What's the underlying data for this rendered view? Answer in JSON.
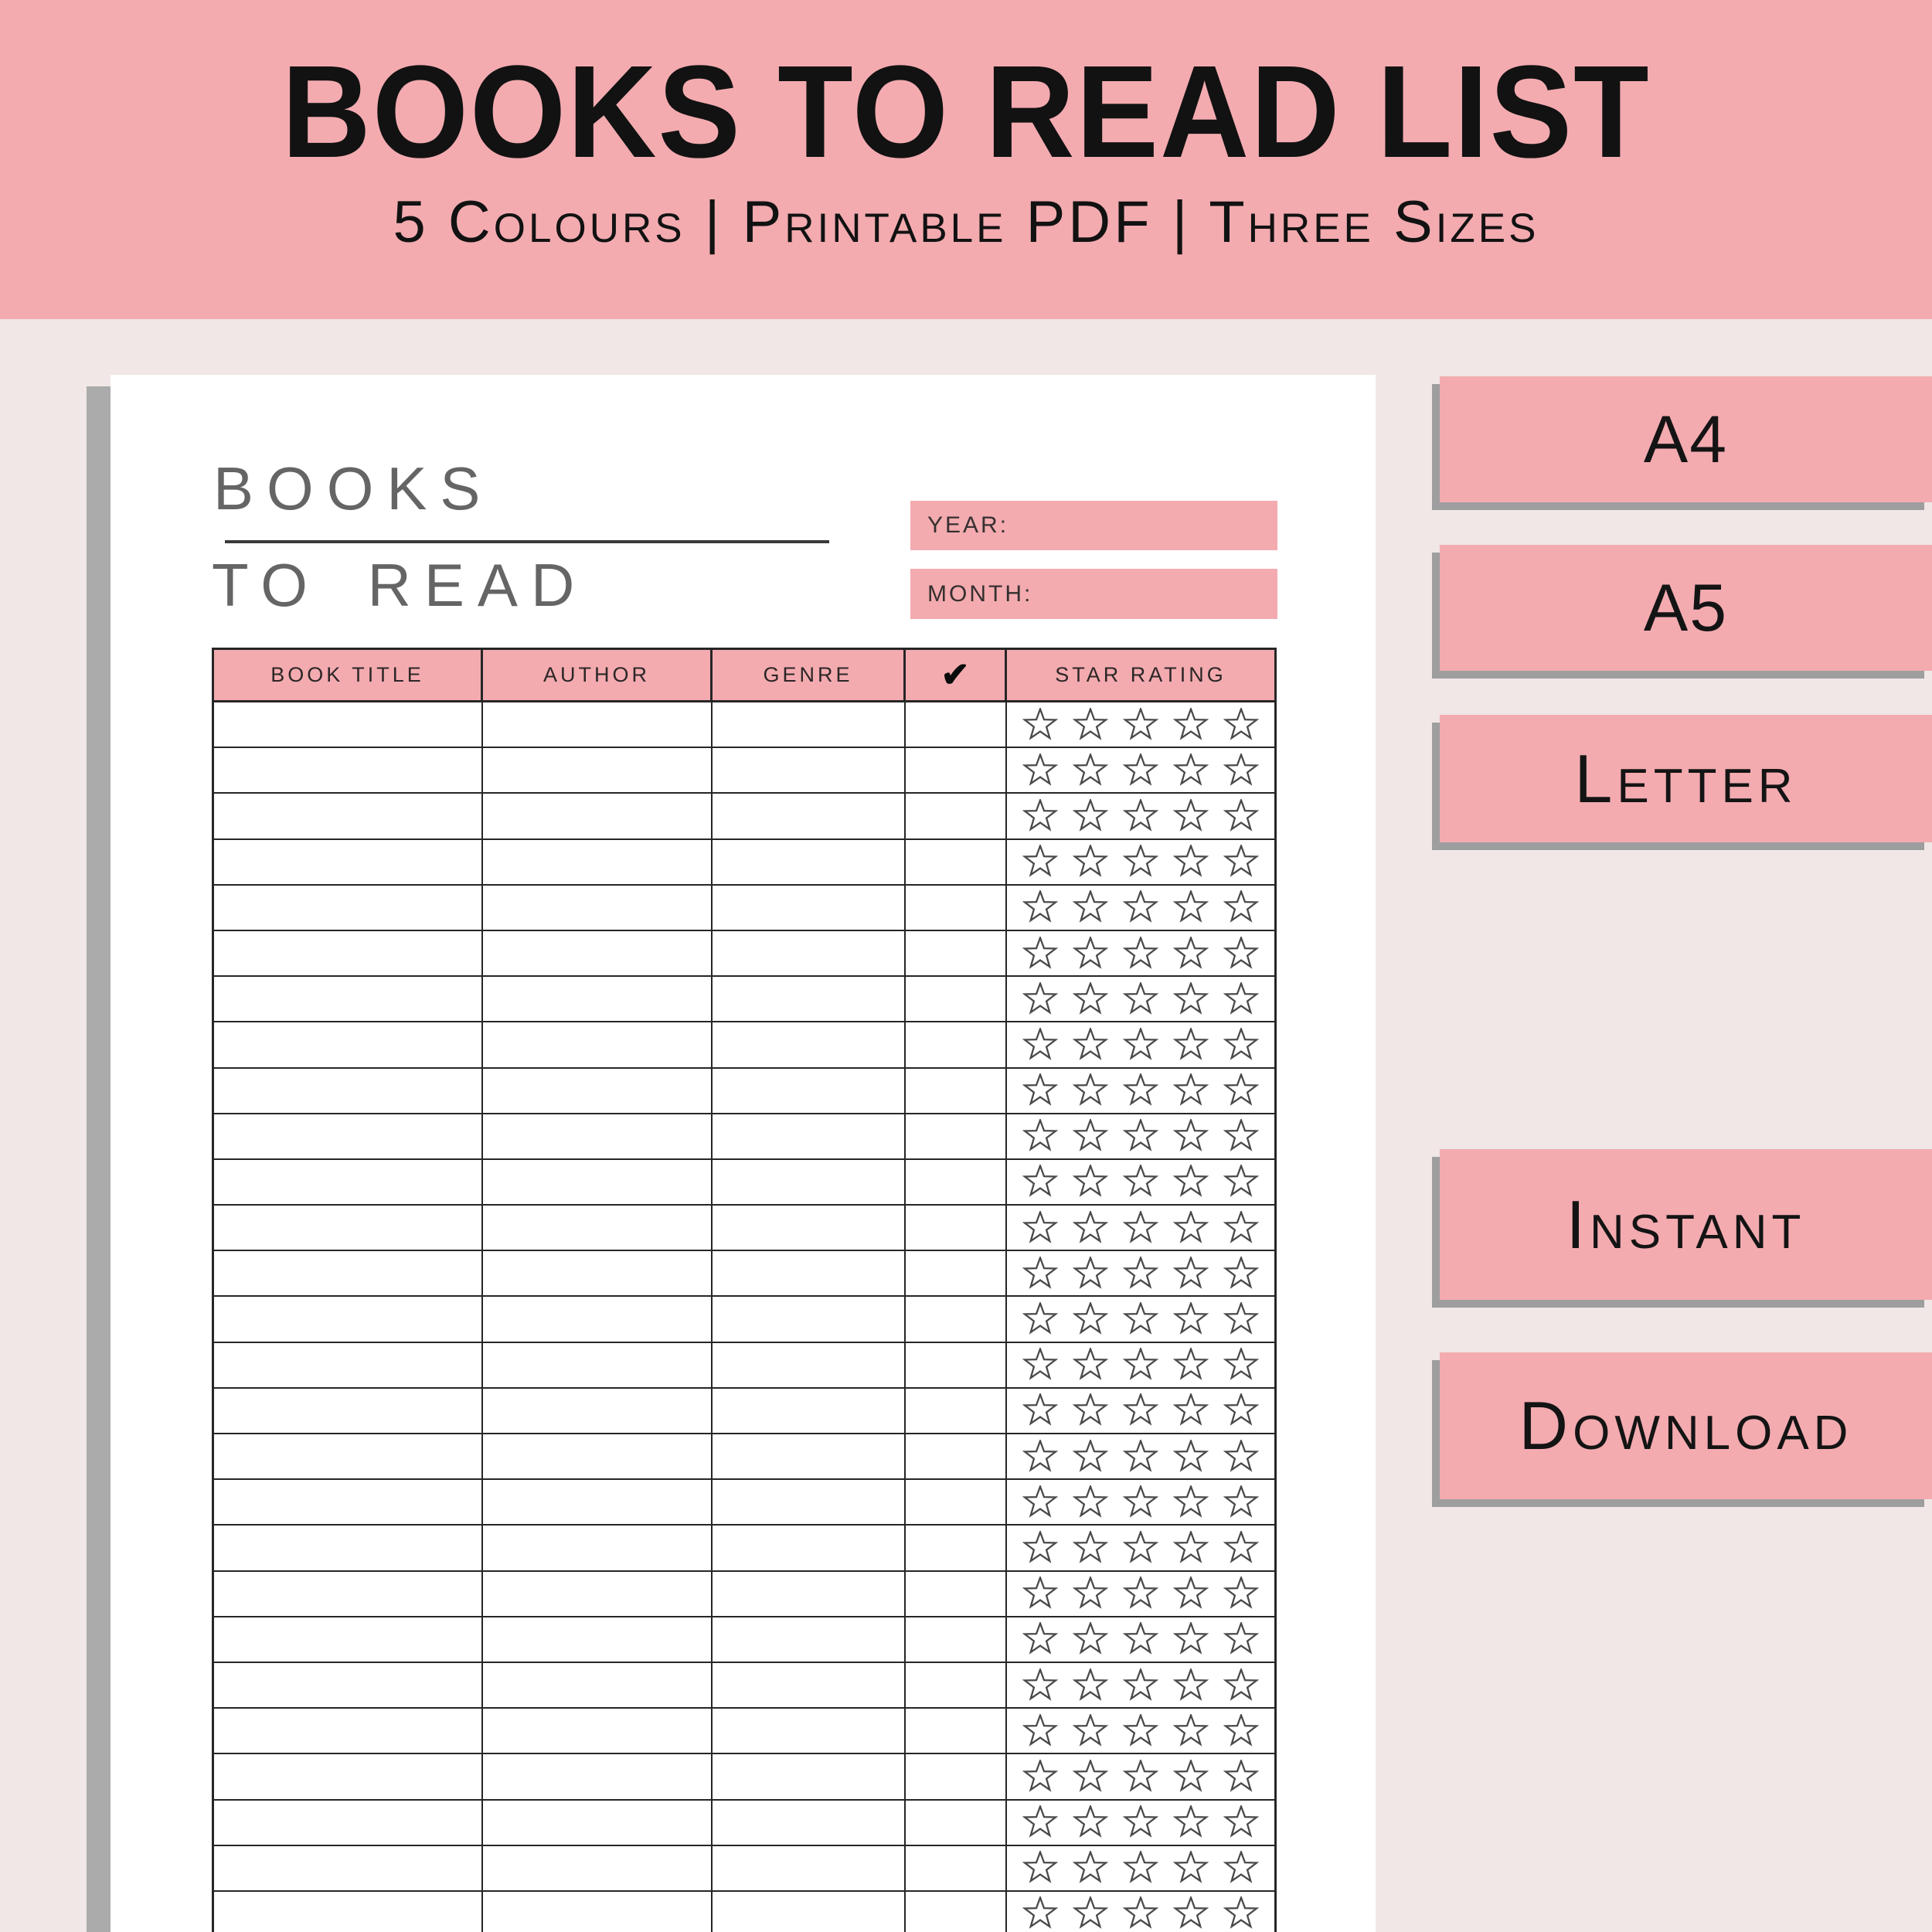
{
  "banner": {
    "title": "BOOKS TO READ LIST",
    "subtitle": "5 Colours | Printable PDF | Three Sizes"
  },
  "page": {
    "title_line1": "BOOKS",
    "title_line2": "TO READ",
    "year_label": "YEAR:",
    "month_label": "MONTH:",
    "table": {
      "headers": [
        "BOOK TITLE",
        "AUTHOR",
        "GENRE",
        "✔",
        "STAR RATING"
      ],
      "header_names": [
        "col-book-title",
        "col-author",
        "col-genre",
        "check-icon",
        "col-star-rating"
      ],
      "cell_names": [
        "cell-book-title",
        "cell-author",
        "cell-genre",
        "cell-check",
        "cell-star-rating"
      ],
      "rows": 28,
      "stars_per_row": 5
    }
  },
  "badges": [
    {
      "label": "A4"
    },
    {
      "label": "A5"
    },
    {
      "label": "Letter"
    },
    {
      "label": "Instant"
    },
    {
      "label": "Download"
    }
  ],
  "colors": {
    "pink": "#F3ABB0",
    "background": "#F0E7E6",
    "page_shadow": "#ABABAB",
    "badge_shadow": "#9E9E9E",
    "table_border": "#262626",
    "page_title_gray": "#656565",
    "star_outline": "#4A4A4A"
  }
}
